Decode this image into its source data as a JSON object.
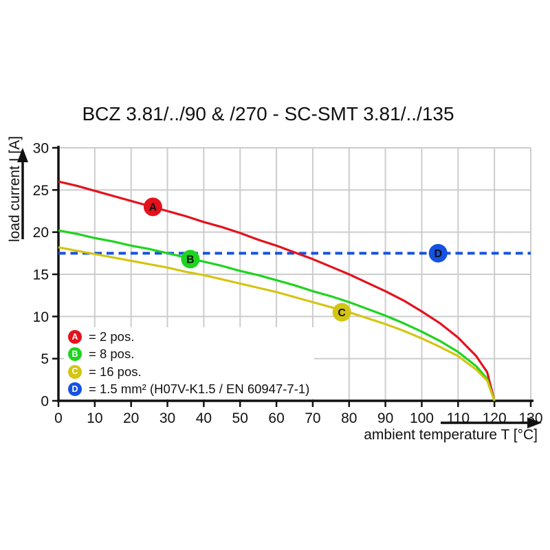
{
  "chart_data": {
    "type": "line",
    "title": "BCZ 3.81/../90 & /270 - SC-SMT 3.81/../135",
    "xlabel": "ambient temperature T [°C]",
    "ylabel": "load current I [A]",
    "xlim": [
      0,
      130
    ],
    "ylim": [
      0,
      30
    ],
    "xticks": [
      0,
      10,
      20,
      30,
      40,
      50,
      60,
      70,
      80,
      90,
      100,
      110,
      120,
      130
    ],
    "yticks": [
      0,
      5,
      10,
      15,
      20,
      25,
      30
    ],
    "grid": true,
    "grid_color": "#cccccc",
    "axis_color": "#111111",
    "series": [
      {
        "id": "A",
        "name": "2 pos.",
        "color": "#e4121c",
        "line_style": "solid",
        "x": [
          0,
          5,
          10,
          15,
          20,
          25,
          30,
          35,
          40,
          45,
          50,
          55,
          60,
          65,
          70,
          75,
          80,
          85,
          90,
          95,
          100,
          105,
          110,
          115,
          118,
          120
        ],
        "values": [
          26.0,
          25.5,
          24.9,
          24.3,
          23.7,
          23.1,
          22.5,
          21.9,
          21.2,
          20.6,
          19.9,
          19.1,
          18.4,
          17.6,
          16.8,
          15.9,
          15.0,
          14.0,
          13.0,
          11.9,
          10.6,
          9.2,
          7.5,
          5.3,
          3.4,
          0
        ]
      },
      {
        "id": "B",
        "name": "8 pos.",
        "color": "#1ed41e",
        "line_style": "solid",
        "x": [
          0,
          5,
          10,
          15,
          20,
          25,
          30,
          35,
          40,
          45,
          50,
          55,
          60,
          65,
          70,
          75,
          80,
          85,
          90,
          95,
          100,
          105,
          110,
          115,
          118,
          120
        ],
        "values": [
          20.2,
          19.8,
          19.3,
          18.9,
          18.4,
          18.0,
          17.5,
          17.0,
          16.5,
          16.0,
          15.4,
          14.9,
          14.3,
          13.7,
          13.0,
          12.4,
          11.7,
          10.9,
          10.1,
          9.2,
          8.2,
          7.1,
          5.8,
          4.1,
          2.6,
          0
        ]
      },
      {
        "id": "C",
        "name": "16 pos.",
        "color": "#d3c512",
        "line_style": "solid",
        "x": [
          0,
          5,
          10,
          15,
          20,
          25,
          30,
          35,
          40,
          45,
          50,
          55,
          60,
          65,
          70,
          75,
          80,
          85,
          90,
          95,
          100,
          105,
          110,
          115,
          118,
          120
        ],
        "values": [
          18.2,
          17.8,
          17.4,
          17.0,
          16.6,
          16.2,
          15.8,
          15.3,
          14.9,
          14.4,
          13.9,
          13.4,
          12.9,
          12.3,
          11.7,
          11.1,
          10.5,
          9.8,
          9.1,
          8.3,
          7.4,
          6.4,
          5.3,
          3.7,
          2.4,
          0
        ]
      },
      {
        "id": "D",
        "name": "1.5 mm² (H07V-K1.5 / EN 60947-7-1)",
        "color": "#1552e2",
        "line_style": "dashed",
        "x": [
          0,
          130
        ],
        "values": [
          17.5,
          17.5
        ]
      }
    ],
    "curve_markers": [
      {
        "letter": "A",
        "x": 26,
        "y": 23.0
      },
      {
        "letter": "B",
        "x": 36.3,
        "y": 16.8
      },
      {
        "letter": "C",
        "x": 78,
        "y": 10.5
      },
      {
        "letter": "D",
        "x": 104.5,
        "y": 17.5
      }
    ],
    "legend": {
      "position": "inside-bottom-left",
      "items": [
        {
          "letter": "A",
          "color": "#e4121c",
          "label": "= 2 pos."
        },
        {
          "letter": "B",
          "color": "#1ed41e",
          "label": "= 8 pos."
        },
        {
          "letter": "C",
          "color": "#d3c512",
          "label": "= 16 pos."
        },
        {
          "letter": "D",
          "color": "#1552e2",
          "label": "= 1.5 mm² (H07V-K1.5 / EN 60947-7-1)"
        }
      ]
    }
  }
}
